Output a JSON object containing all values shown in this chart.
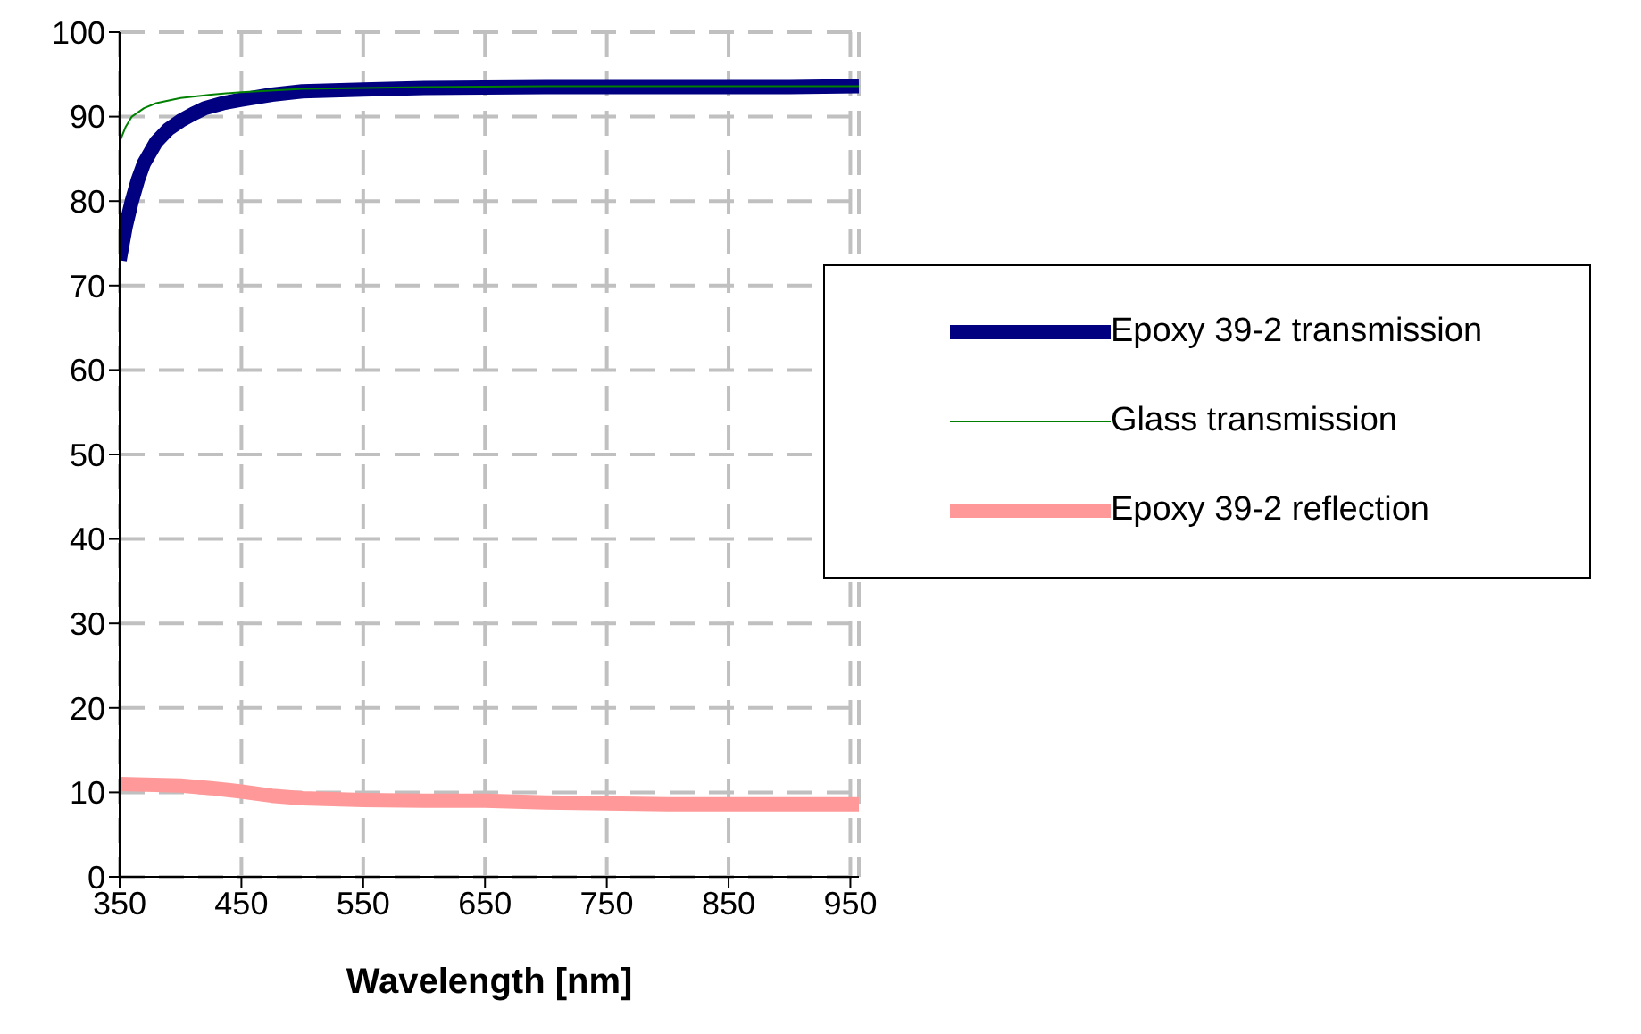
{
  "chart_data": {
    "type": "line",
    "xlabel": "Wavelength [nm]",
    "xlim": [
      350,
      957
    ],
    "xticks": [
      350,
      450,
      550,
      650,
      750,
      850,
      950
    ],
    "ylim": [
      0,
      100
    ],
    "yticks": [
      0,
      10,
      20,
      30,
      40,
      50,
      60,
      70,
      80,
      90,
      100
    ],
    "grid": true,
    "legend": "right",
    "marker": "none",
    "line_style": "solid",
    "series": [
      {
        "name": "Epoxy 39-2 transmission",
        "color": "#000080",
        "x": [
          350,
          355,
          360,
          365,
          370,
          380,
          390,
          400,
          410,
          420,
          435,
          450,
          475,
          500,
          550,
          600,
          700,
          800,
          900,
          957
        ],
        "values": [
          73,
          77,
          80,
          82.5,
          84.5,
          87,
          88.5,
          89.5,
          90.3,
          91,
          91.6,
          92,
          92.6,
          93,
          93.2,
          93.4,
          93.5,
          93.5,
          93.5,
          93.6
        ]
      },
      {
        "name": "Glass transmission",
        "color": "#008000",
        "x": [
          350,
          355,
          360,
          370,
          380,
          400,
          425,
          450,
          500,
          600,
          700,
          800,
          900,
          957
        ],
        "values": [
          87,
          88.8,
          90,
          91,
          91.6,
          92.2,
          92.6,
          92.9,
          93.3,
          93.5,
          93.6,
          93.6,
          93.6,
          93.6
        ]
      },
      {
        "name": "Epoxy 39-2 reflection",
        "color": "#ff9999",
        "x": [
          350,
          400,
          425,
          450,
          475,
          500,
          550,
          600,
          650,
          700,
          800,
          900,
          957
        ],
        "values": [
          11,
          10.8,
          10.5,
          10.1,
          9.6,
          9.3,
          9.1,
          9,
          9,
          8.8,
          8.6,
          8.6,
          8.6
        ]
      }
    ]
  }
}
